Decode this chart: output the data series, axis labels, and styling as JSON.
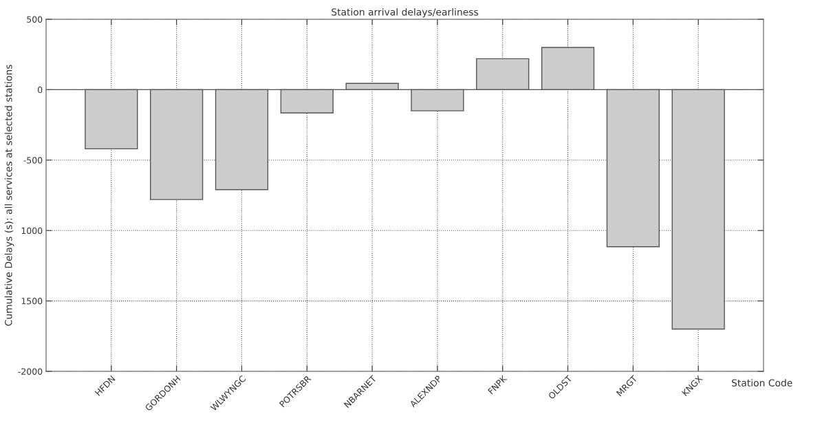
{
  "chart_data": {
    "type": "bar",
    "title": "Station arrival delays/earliness",
    "xlabel": "Station Code",
    "ylabel": "Cumulative Delays (s): all services at selected stations",
    "categories": [
      "HFDN",
      "GORDONH",
      "WLWYNGC",
      "POTRSBR",
      "NBARNET",
      "ALEXNDP",
      "FNPK",
      "OLDST",
      "MRGT",
      "KNGX"
    ],
    "values": [
      -420,
      -780,
      -710,
      -165,
      45,
      -150,
      220,
      300,
      -1115,
      -1700
    ],
    "color": "#cccccc",
    "ylim": [
      -2000,
      500
    ],
    "yticks": [
      -2000,
      {
        "value": -1500,
        "label": "1500"
      },
      {
        "value": -1000,
        "label": "1000"
      },
      -500,
      0,
      500
    ],
    "grid": true
  }
}
